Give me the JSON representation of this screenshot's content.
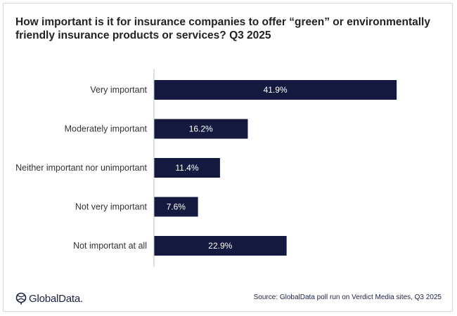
{
  "chart_data": {
    "type": "bar",
    "orientation": "horizontal",
    "title": "How important is it for insurance companies to offer “green” or environmentally friendly insurance products or services? Q3 2025",
    "categories": [
      "Very important",
      "Moderately important",
      "Neither important nor unimportant",
      "Not very important",
      "Not important at all"
    ],
    "values": [
      41.9,
      16.2,
      11.4,
      7.6,
      22.9
    ],
    "value_labels": [
      "41.9%",
      "16.2%",
      "11.4%",
      "7.6%",
      "22.9%"
    ],
    "xlim": [
      0,
      42
    ],
    "grid": false,
    "bar_color": "#141a3f"
  },
  "footer": {
    "logo_text": "GlobalData.",
    "source": "Source: GlobalData poll run on Verdict Media sites, Q3 2025"
  }
}
